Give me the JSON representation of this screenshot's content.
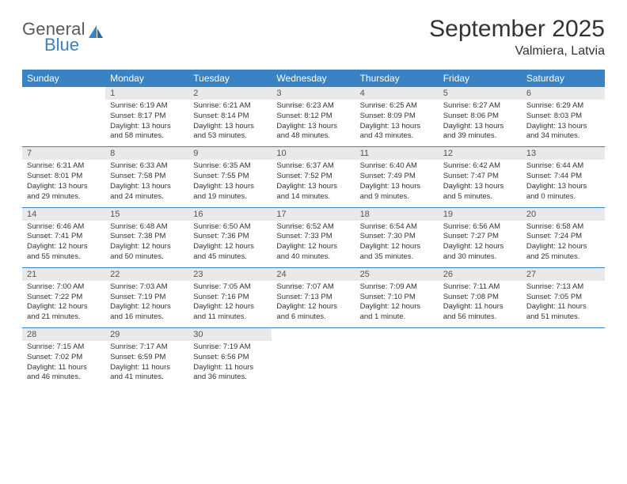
{
  "logo": {
    "line1": "General",
    "line2": "Blue",
    "accent_color": "#3982c4",
    "text_color": "#5a5a5a"
  },
  "title": "September 2025",
  "location": "Valmiera, Latvia",
  "colors": {
    "header_bg": "#3982c4",
    "header_text": "#ffffff",
    "daynum_bg": "#e9e9e9",
    "daynum_text": "#555555",
    "border": "#3982c4",
    "body_text": "#333333"
  },
  "weekdays": [
    "Sunday",
    "Monday",
    "Tuesday",
    "Wednesday",
    "Thursday",
    "Friday",
    "Saturday"
  ],
  "weeks": [
    [
      null,
      {
        "d": "1",
        "sr": "Sunrise: 6:19 AM",
        "ss": "Sunset: 8:17 PM",
        "dl1": "Daylight: 13 hours",
        "dl2": "and 58 minutes."
      },
      {
        "d": "2",
        "sr": "Sunrise: 6:21 AM",
        "ss": "Sunset: 8:14 PM",
        "dl1": "Daylight: 13 hours",
        "dl2": "and 53 minutes."
      },
      {
        "d": "3",
        "sr": "Sunrise: 6:23 AM",
        "ss": "Sunset: 8:12 PM",
        "dl1": "Daylight: 13 hours",
        "dl2": "and 48 minutes."
      },
      {
        "d": "4",
        "sr": "Sunrise: 6:25 AM",
        "ss": "Sunset: 8:09 PM",
        "dl1": "Daylight: 13 hours",
        "dl2": "and 43 minutes."
      },
      {
        "d": "5",
        "sr": "Sunrise: 6:27 AM",
        "ss": "Sunset: 8:06 PM",
        "dl1": "Daylight: 13 hours",
        "dl2": "and 39 minutes."
      },
      {
        "d": "6",
        "sr": "Sunrise: 6:29 AM",
        "ss": "Sunset: 8:03 PM",
        "dl1": "Daylight: 13 hours",
        "dl2": "and 34 minutes."
      }
    ],
    [
      {
        "d": "7",
        "sr": "Sunrise: 6:31 AM",
        "ss": "Sunset: 8:01 PM",
        "dl1": "Daylight: 13 hours",
        "dl2": "and 29 minutes."
      },
      {
        "d": "8",
        "sr": "Sunrise: 6:33 AM",
        "ss": "Sunset: 7:58 PM",
        "dl1": "Daylight: 13 hours",
        "dl2": "and 24 minutes."
      },
      {
        "d": "9",
        "sr": "Sunrise: 6:35 AM",
        "ss": "Sunset: 7:55 PM",
        "dl1": "Daylight: 13 hours",
        "dl2": "and 19 minutes."
      },
      {
        "d": "10",
        "sr": "Sunrise: 6:37 AM",
        "ss": "Sunset: 7:52 PM",
        "dl1": "Daylight: 13 hours",
        "dl2": "and 14 minutes."
      },
      {
        "d": "11",
        "sr": "Sunrise: 6:40 AM",
        "ss": "Sunset: 7:49 PM",
        "dl1": "Daylight: 13 hours",
        "dl2": "and 9 minutes."
      },
      {
        "d": "12",
        "sr": "Sunrise: 6:42 AM",
        "ss": "Sunset: 7:47 PM",
        "dl1": "Daylight: 13 hours",
        "dl2": "and 5 minutes."
      },
      {
        "d": "13",
        "sr": "Sunrise: 6:44 AM",
        "ss": "Sunset: 7:44 PM",
        "dl1": "Daylight: 13 hours",
        "dl2": "and 0 minutes."
      }
    ],
    [
      {
        "d": "14",
        "sr": "Sunrise: 6:46 AM",
        "ss": "Sunset: 7:41 PM",
        "dl1": "Daylight: 12 hours",
        "dl2": "and 55 minutes."
      },
      {
        "d": "15",
        "sr": "Sunrise: 6:48 AM",
        "ss": "Sunset: 7:38 PM",
        "dl1": "Daylight: 12 hours",
        "dl2": "and 50 minutes."
      },
      {
        "d": "16",
        "sr": "Sunrise: 6:50 AM",
        "ss": "Sunset: 7:36 PM",
        "dl1": "Daylight: 12 hours",
        "dl2": "and 45 minutes."
      },
      {
        "d": "17",
        "sr": "Sunrise: 6:52 AM",
        "ss": "Sunset: 7:33 PM",
        "dl1": "Daylight: 12 hours",
        "dl2": "and 40 minutes."
      },
      {
        "d": "18",
        "sr": "Sunrise: 6:54 AM",
        "ss": "Sunset: 7:30 PM",
        "dl1": "Daylight: 12 hours",
        "dl2": "and 35 minutes."
      },
      {
        "d": "19",
        "sr": "Sunrise: 6:56 AM",
        "ss": "Sunset: 7:27 PM",
        "dl1": "Daylight: 12 hours",
        "dl2": "and 30 minutes."
      },
      {
        "d": "20",
        "sr": "Sunrise: 6:58 AM",
        "ss": "Sunset: 7:24 PM",
        "dl1": "Daylight: 12 hours",
        "dl2": "and 25 minutes."
      }
    ],
    [
      {
        "d": "21",
        "sr": "Sunrise: 7:00 AM",
        "ss": "Sunset: 7:22 PM",
        "dl1": "Daylight: 12 hours",
        "dl2": "and 21 minutes."
      },
      {
        "d": "22",
        "sr": "Sunrise: 7:03 AM",
        "ss": "Sunset: 7:19 PM",
        "dl1": "Daylight: 12 hours",
        "dl2": "and 16 minutes."
      },
      {
        "d": "23",
        "sr": "Sunrise: 7:05 AM",
        "ss": "Sunset: 7:16 PM",
        "dl1": "Daylight: 12 hours",
        "dl2": "and 11 minutes."
      },
      {
        "d": "24",
        "sr": "Sunrise: 7:07 AM",
        "ss": "Sunset: 7:13 PM",
        "dl1": "Daylight: 12 hours",
        "dl2": "and 6 minutes."
      },
      {
        "d": "25",
        "sr": "Sunrise: 7:09 AM",
        "ss": "Sunset: 7:10 PM",
        "dl1": "Daylight: 12 hours",
        "dl2": "and 1 minute."
      },
      {
        "d": "26",
        "sr": "Sunrise: 7:11 AM",
        "ss": "Sunset: 7:08 PM",
        "dl1": "Daylight: 11 hours",
        "dl2": "and 56 minutes."
      },
      {
        "d": "27",
        "sr": "Sunrise: 7:13 AM",
        "ss": "Sunset: 7:05 PM",
        "dl1": "Daylight: 11 hours",
        "dl2": "and 51 minutes."
      }
    ],
    [
      {
        "d": "28",
        "sr": "Sunrise: 7:15 AM",
        "ss": "Sunset: 7:02 PM",
        "dl1": "Daylight: 11 hours",
        "dl2": "and 46 minutes."
      },
      {
        "d": "29",
        "sr": "Sunrise: 7:17 AM",
        "ss": "Sunset: 6:59 PM",
        "dl1": "Daylight: 11 hours",
        "dl2": "and 41 minutes."
      },
      {
        "d": "30",
        "sr": "Sunrise: 7:19 AM",
        "ss": "Sunset: 6:56 PM",
        "dl1": "Daylight: 11 hours",
        "dl2": "and 36 minutes."
      },
      null,
      null,
      null,
      null
    ]
  ]
}
